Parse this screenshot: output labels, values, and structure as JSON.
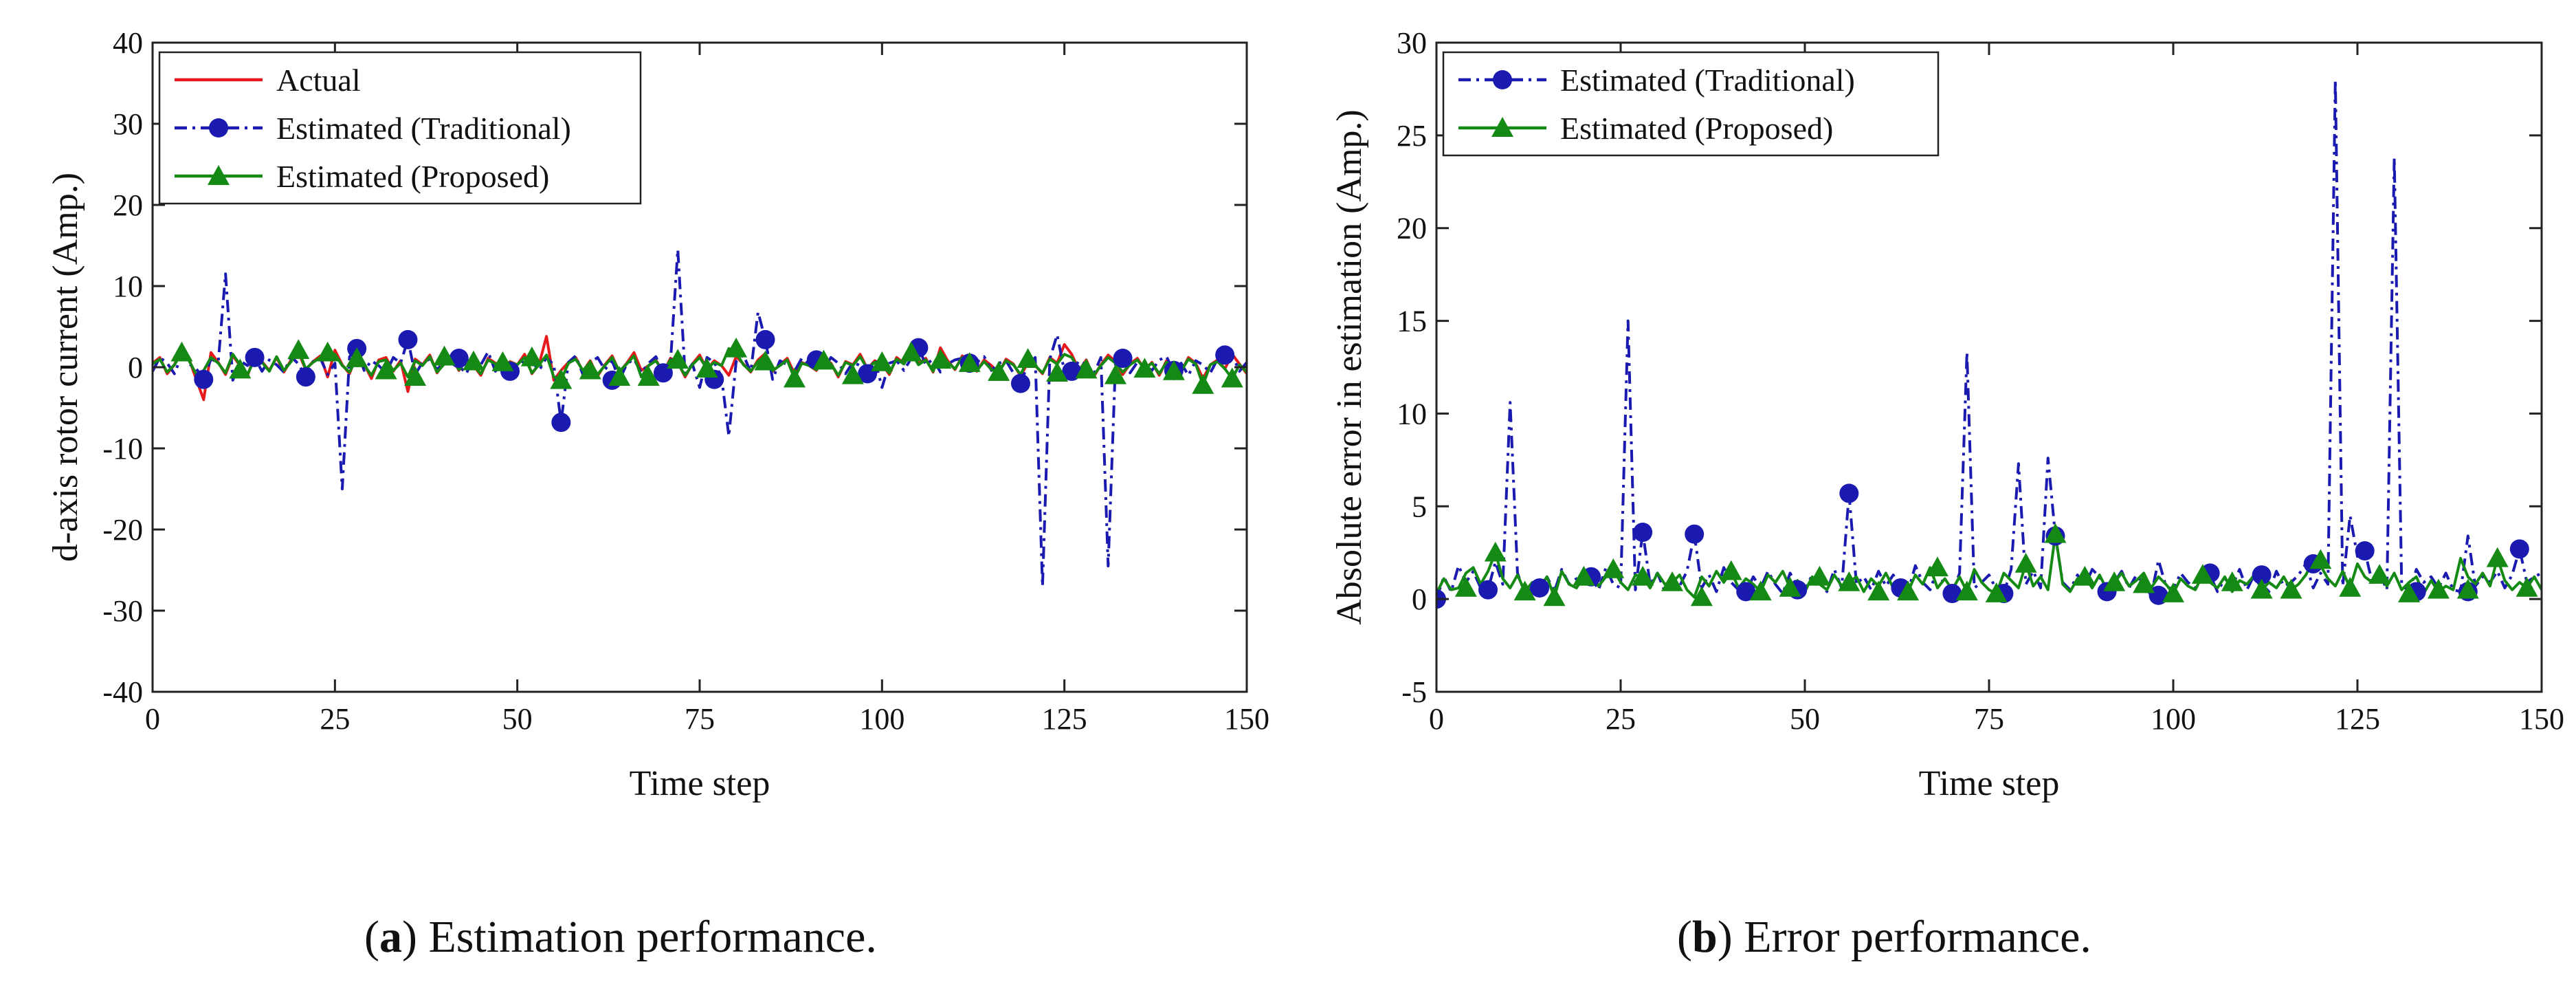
{
  "colors": {
    "actual": "#e8191c",
    "traditional": "#1a1ab0",
    "proposed": "#148a14",
    "axis": "#222222",
    "background": "#ffffff"
  },
  "captions": {
    "a": {
      "letter": "a",
      "text": " Estimation performance."
    },
    "b": {
      "letter": "b",
      "text": " Error performance."
    }
  },
  "chart_data": [
    {
      "type": "line",
      "xlabel": "Time step",
      "ylabel": "d-axis rotor current (Amp.)",
      "xlim": [
        0,
        150
      ],
      "ylim": [
        -40,
        40
      ],
      "xticks": [
        0,
        25,
        50,
        75,
        100,
        125,
        150
      ],
      "yticks": [
        -40,
        -30,
        -20,
        -10,
        0,
        10,
        20,
        30,
        40
      ],
      "grid": false,
      "legend": "top-left",
      "series": [
        {
          "name": "Actual",
          "color": "#e8191c",
          "style": "solid",
          "marker": "none",
          "step": 1,
          "values": [
            0.5,
            1.2,
            -0.8,
            0.3,
            2.6,
            1.0,
            -1.5,
            -4.0,
            1.8,
            0.6,
            -0.9,
            1.4,
            0.2,
            -1.1,
            1.5,
            0.7,
            -0.4,
            1.2,
            -0.6,
            0.9,
            1.8,
            -0.3,
            0.7,
            1.4,
            -1.2,
            2.1,
            0.3,
            -0.8,
            1.6,
            0.4,
            -1.4,
            0.9,
            1.2,
            -0.5,
            0.8,
            -3.0,
            1.0,
            0.3,
            1.5,
            -0.7,
            0.6,
            1.2,
            -0.4,
            0.9,
            0.2,
            -1.0,
            1.1,
            0.5,
            -0.2,
            0.7,
            0.3,
            1.6,
            -0.8,
            0.4,
            3.8,
            -1.6,
            -0.4,
            0.6,
            1.2,
            -0.5,
            0.8,
            -1.1,
            0.3,
            1.4,
            -0.6,
            0.5,
            1.8,
            -0.4,
            0.2,
            0.9,
            -0.7,
            1.1,
            0.6,
            -1.2,
            0.4,
            1.5,
            -0.3,
            0.8,
            0.2,
            -1.0,
            1.3,
            0.4,
            -0.6,
            0.9,
            1.7,
            -0.5,
            0.3,
            1.1,
            -0.8,
            0.6,
            0.2,
            -0.4,
            1.0,
            0.5,
            -1.2,
            0.7,
            0.3,
            1.6,
            -0.2,
            0.8,
            0.4,
            -0.9,
            1.2,
            0.5,
            2.6,
            0.4,
            1.1,
            -0.6,
            2.4,
            0.8,
            -0.3,
            1.4,
            0.6,
            -0.5,
            0.9,
            0.2,
            -0.7,
            1.0,
            0.4,
            -1.1,
            0.6,
            0.2,
            -0.8,
            1.2,
            0.5,
            2.8,
            1.6,
            -0.4,
            0.9,
            -1.2,
            0.3,
            1.5,
            0.7,
            -0.9,
            0.4,
            1.1,
            -0.3,
            0.6,
            -1.0,
            0.8,
            0.2,
            -0.6,
            1.2,
            0.5,
            -1.4,
            0.3,
            0.9,
            -0.2,
            1.6,
            0.4,
            -0.8
          ]
        },
        {
          "name": "Estimated (Traditional)",
          "color": "#1a1ab0",
          "style": "dashdot",
          "marker": "circle",
          "step": 1,
          "values": [
            -0.5,
            1.2,
            0.5,
            -0.8,
            1.5,
            0.4,
            -0.2,
            -1.5,
            1.0,
            0.6,
            11.5,
            -1.6,
            0.8,
            0.2,
            1.2,
            -0.5,
            0.9,
            0.3,
            -0.6,
            1.3,
            0.4,
            -1.2,
            0.7,
            1.1,
            -0.9,
            0.5,
            -15.0,
            1.3,
            2.3,
            -0.4,
            0.8,
            0.2,
            -0.7,
            1.2,
            0.5,
            3.4,
            -0.9,
            0.6,
            1.0,
            -0.3,
            0.7,
            1.4,
            0.2,
            -0.8,
            1.1,
            0.3,
            1.9,
            -0.5,
            0.6,
            0.4,
            -0.2,
            1.0,
            0.7,
            -0.4,
            1.2,
            0.3,
            -6.8,
            0.6,
            1.4,
            -0.9,
            0.5,
            1.2,
            -0.3,
            0.8,
            -1.6,
            0.4,
            1.0,
            -0.7,
            0.5,
            1.3,
            -0.9,
            0.6,
            14.5,
            -0.8,
            0.4,
            -2.5,
            1.2,
            0.6,
            -1.2,
            -8.5,
            0.7,
            1.5,
            -0.6,
            6.8,
            3.4,
            -1.5,
            0.8,
            0.3,
            -0.5,
            1.1,
            0.4,
            0.9,
            -0.3,
            1.2,
            0.5,
            -0.8,
            0.6,
            0.2,
            -0.9,
            1.0,
            -2.5,
            0.5,
            0.8,
            -0.4,
            1.1,
            2.4,
            0.3,
            1.0,
            -0.6,
            0.4,
            0.9,
            1.1,
            -0.2,
            0.6,
            1.3,
            -0.4,
            0.5,
            0.8,
            -0.7,
            -2.0,
            0.4,
            1.2,
            -27.0,
            1.0,
            4.0,
            -0.5,
            -0.6,
            0.8,
            0.3,
            -0.9,
            1.2,
            -24.5,
            0.4,
            1.1,
            -0.7,
            0.6,
            0.2,
            -0.4,
            0.9,
            1.3,
            -0.6,
            0.5,
            -1.0,
            0.8,
            0.3,
            -0.7,
            1.0,
            0.4,
            1.5,
            -0.5,
            0.6,
            1.2,
            -0.8
          ]
        },
        {
          "name": "Estimated (Proposed)",
          "color": "#148a14",
          "style": "solid",
          "marker": "triangle",
          "step": 1,
          "values": [
            0.4,
            1.0,
            -0.6,
            0.3,
            1.8,
            0.8,
            -0.9,
            -0.4,
            1.2,
            0.5,
            -0.7,
            1.6,
            0.3,
            -0.9,
            1.0,
            0.6,
            -0.5,
            1.3,
            -0.4,
            0.7,
            2.1,
            -0.2,
            0.6,
            1.2,
            1.8,
            1.6,
            0.2,
            -0.6,
            1.1,
            0.3,
            -1.0,
            0.7,
            0.9,
            -0.4,
            0.5,
            -1.2,
            0.8,
            0.2,
            1.3,
            -0.6,
            0.4,
            1.0,
            -0.3,
            0.7,
            0.2,
            -0.8,
            0.9,
            0.4,
            -0.2,
            0.6,
            0.3,
            1.2,
            -0.7,
            0.3,
            1.5,
            -1.2,
            -1.6,
            0.5,
            1.0,
            -0.4,
            0.6,
            -0.9,
            0.2,
            1.2,
            -0.5,
            0.4,
            1.4,
            -1.2,
            0.2,
            0.8,
            -0.6,
            0.9,
            0.5,
            -1.0,
            0.3,
            1.2,
            -0.2,
            0.6,
            0.2,
            2.3,
            1.8,
            0.3,
            -0.5,
            0.7,
            1.4,
            -0.4,
            0.2,
            0.9,
            -1.4,
            0.5,
            0.2,
            -0.3,
            0.8,
            0.4,
            -1.0,
            0.6,
            0.2,
            1.3,
            -0.2,
            0.6,
            0.3,
            -0.7,
            1.0,
            0.4,
            1.8,
            0.3,
            0.9,
            -0.5,
            1.9,
            0.6,
            -0.2,
            1.2,
            0.5,
            -0.4,
            0.7,
            -0.3,
            -0.6,
            0.8,
            0.3,
            -0.9,
            1.0,
            0.2,
            -0.7,
            1.0,
            0.4,
            1.6,
            1.2,
            -0.3,
            0.7,
            -1.0,
            0.2,
            1.2,
            0.5,
            -0.6,
            0.3,
            0.9,
            -0.2,
            0.5,
            -0.8,
            0.6,
            0.2,
            -0.5,
            1.0,
            0.4,
            -2.2,
            0.3,
            0.7,
            -0.2,
            -1.4,
            0.3,
            -0.6
          ]
        }
      ],
      "markers": {
        "Estimated (Traditional)": {
          "x": [
            7,
            14,
            21,
            28,
            35,
            42,
            49,
            56,
            63,
            70,
            77,
            84,
            91,
            98,
            105,
            112,
            119,
            126,
            133,
            140,
            147
          ],
          "y": [
            -1.5,
            1.2,
            -1.2,
            2.3,
            3.4,
            1.1,
            -0.5,
            -6.8,
            -1.6,
            -0.7,
            -1.5,
            3.4,
            0.9,
            -0.8,
            2.4,
            0.5,
            -2.0,
            -0.5,
            1.1,
            -0.4,
            1.5
          ]
        },
        "Estimated (Proposed)": {
          "x": [
            4,
            12,
            20,
            24,
            28,
            32,
            36,
            40,
            44,
            48,
            52,
            56,
            60,
            64,
            68,
            72,
            76,
            80,
            84,
            88,
            92,
            96,
            100,
            104,
            108,
            112,
            116,
            120,
            124,
            128,
            132,
            136,
            140,
            144,
            148
          ],
          "y": [
            1.8,
            -0.3,
            2.1,
            1.8,
            1.1,
            -0.4,
            -1.2,
            1.3,
            0.7,
            0.6,
            1.2,
            -1.6,
            -0.4,
            -1.2,
            -1.2,
            0.9,
            -0.2,
            2.3,
            0.7,
            -1.4,
            0.8,
            -1.0,
            0.6,
            1.8,
            0.9,
            0.5,
            -0.6,
            1.0,
            -0.7,
            -0.3,
            -1.0,
            -0.2,
            -0.5,
            -2.2,
            -1.4
          ]
        }
      }
    },
    {
      "type": "line",
      "xlabel": "Time step",
      "ylabel": "Absolute error in estimation (Amp.)",
      "xlim": [
        0,
        150
      ],
      "ylim": [
        -5,
        30
      ],
      "xticks": [
        0,
        25,
        50,
        75,
        100,
        125,
        150
      ],
      "yticks": [
        -5,
        0,
        5,
        10,
        15,
        20,
        25,
        30
      ],
      "grid": false,
      "legend": "top-left",
      "series": [
        {
          "name": "Estimated (Traditional)",
          "color": "#1a1ab0",
          "style": "dashdot",
          "marker": "circle",
          "step": 1,
          "values": [
            0.0,
            1.2,
            0.4,
            1.8,
            0.9,
            1.5,
            0.6,
            0.5,
            2.0,
            0.8,
            10.6,
            1.4,
            0.3,
            0.6,
            0.6,
            1.2,
            0.4,
            1.6,
            0.8,
            1.1,
            1.3,
            1.2,
            0.5,
            1.7,
            0.8,
            0.6,
            15.0,
            0.5,
            3.6,
            0.8,
            1.4,
            0.4,
            1.2,
            0.7,
            1.5,
            3.5,
            0.6,
            1.3,
            0.4,
            1.7,
            0.9,
            0.5,
            0.4,
            1.2,
            0.6,
            1.5,
            0.8,
            0.3,
            1.4,
            0.7,
            0.5,
            1.3,
            0.9,
            0.4,
            1.6,
            0.6,
            5.7,
            0.8,
            1.2,
            0.5,
            1.5,
            0.7,
            1.3,
            0.6,
            0.4,
            1.8,
            0.9,
            0.5,
            1.6,
            0.7,
            0.3,
            1.4,
            13.3,
            0.6,
            0.9,
            1.3,
            0.5,
            0.3,
            1.6,
            7.3,
            0.8,
            1.5,
            0.6,
            7.6,
            3.4,
            0.9,
            0.5,
            1.3,
            0.7,
            1.6,
            1.2,
            0.4,
            0.9,
            1.5,
            0.6,
            1.3,
            0.8,
            0.2,
            2.1,
            0.7,
            0.5,
            1.4,
            0.9,
            0.6,
            1.5,
            1.3,
            0.4,
            1.1,
            0.7,
            1.6,
            0.5,
            1.3,
            0.8,
            0.4,
            1.5,
            0.7,
            0.9,
            1.3,
            1.9,
            0.6,
            1.4,
            0.8,
            28.0,
            0.7,
            4.5,
            2.3,
            2.6,
            0.9,
            1.4,
            0.5,
            23.8,
            0.8,
            0.4,
            1.6,
            0.9,
            1.2,
            0.6,
            1.4,
            0.5,
            0.4,
            3.4,
            0.7,
            1.2,
            0.9,
            1.5,
            0.6,
            1.3,
            2.7,
            0.9,
            1.2,
            1.4
          ]
        },
        {
          "name": "Estimated (Proposed)",
          "color": "#148a14",
          "style": "solid",
          "marker": "triangle",
          "step": 1,
          "values": [
            0.3,
            1.1,
            0.5,
            0.6,
            1.4,
            1.7,
            0.8,
            1.5,
            2.5,
            1.1,
            0.6,
            1.3,
            0.4,
            0.9,
            0.6,
            1.2,
            0.1,
            1.5,
            0.8,
            0.6,
            1.2,
            1.4,
            0.7,
            1.2,
            1.6,
            0.9,
            0.5,
            1.3,
            1.2,
            0.6,
            1.4,
            0.8,
            0.9,
            1.3,
            0.5,
            0.1,
            1.2,
            0.7,
            1.5,
            0.9,
            1.5,
            0.6,
            1.1,
            0.8,
            0.4,
            1.3,
            0.9,
            1.5,
            0.6,
            1.0,
            0.4,
            1.2,
            0.8,
            0.5,
            1.3,
            0.7,
            0.9,
            1.2,
            0.4,
            1.1,
            0.7,
            1.4,
            0.6,
            0.9,
            0.4,
            1.3,
            0.8,
            1.7,
            0.6,
            1.1,
            0.5,
            1.2,
            0.4,
            1.6,
            0.9,
            0.5,
            0.3,
            1.4,
            1.0,
            0.6,
            1.9,
            0.7,
            1.2,
            0.5,
            3.5,
            0.8,
            0.4,
            1.1,
            1.2,
            0.6,
            1.3,
            0.5,
            0.9,
            1.4,
            0.7,
            1.0,
            1.4,
            0.6,
            1.2,
            0.8,
            0.3,
            1.1,
            0.7,
            0.5,
            1.3,
            0.9,
            0.6,
            1.2,
            0.4,
            1.0,
            0.8,
            1.3,
            0.5,
            0.9,
            0.6,
            1.2,
            0.5,
            0.8,
            1.3,
            2.1,
            1.8,
            1.1,
            0.7,
            1.5,
            0.6,
            1.9,
            1.2,
            0.9,
            1.3,
            0.7,
            1.4,
            0.5,
            0.9,
            1.2,
            0.3,
            1.0,
            0.4,
            0.7,
            0.5,
            2.2,
            1.2,
            0.8,
            1.4,
            0.7,
            2.2,
            1.0,
            0.5,
            0.9,
            0.6,
            1.2,
            0.5
          ]
        }
      ],
      "markers": {
        "Estimated (Traditional)": {
          "x": [
            0,
            7,
            14,
            21,
            28,
            35,
            42,
            49,
            56,
            63,
            70,
            77,
            84,
            91,
            98,
            105,
            112,
            119,
            126,
            133,
            140,
            147
          ],
          "y": [
            0.0,
            0.5,
            0.6,
            1.2,
            3.6,
            3.5,
            0.4,
            0.5,
            5.7,
            0.6,
            0.3,
            0.3,
            3.4,
            0.4,
            0.2,
            1.4,
            1.3,
            1.9,
            2.6,
            0.4,
            0.4,
            2.7
          ]
        },
        "Estimated (Proposed)": {
          "x": [
            4,
            8,
            12,
            16,
            20,
            24,
            28,
            32,
            36,
            40,
            44,
            48,
            52,
            56,
            60,
            64,
            68,
            72,
            76,
            80,
            84,
            88,
            92,
            96,
            100,
            104,
            108,
            112,
            116,
            120,
            124,
            128,
            132,
            136,
            140,
            144,
            148
          ],
          "y": [
            0.6,
            2.5,
            0.4,
            0.1,
            1.2,
            1.6,
            1.2,
            0.9,
            0.1,
            1.5,
            0.4,
            0.6,
            1.2,
            0.9,
            0.4,
            0.4,
            1.7,
            0.4,
            0.3,
            1.9,
            3.5,
            1.2,
            0.9,
            0.8,
            0.3,
            1.3,
            0.9,
            0.5,
            0.5,
            2.1,
            0.6,
            1.3,
            0.3,
            0.5,
            0.5,
            2.2,
            0.6
          ]
        }
      }
    }
  ]
}
